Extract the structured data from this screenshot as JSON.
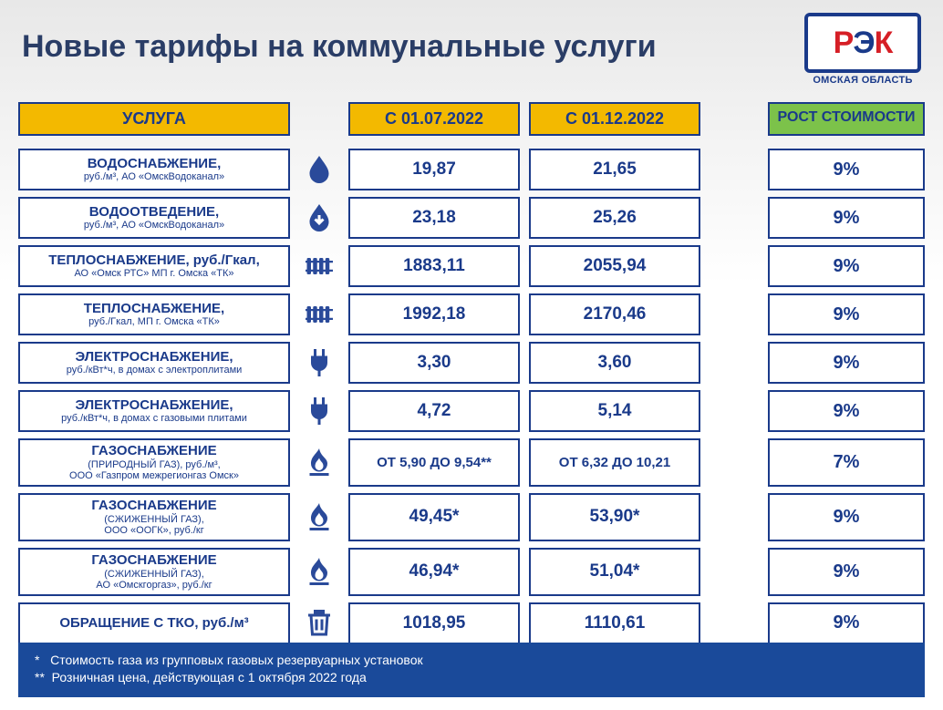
{
  "title": "Новые тарифы на коммунальные услуги",
  "logo": {
    "letters": [
      "Р",
      "Э",
      "К"
    ],
    "subtitle": "ОМСКАЯ ОБЛАСТЬ"
  },
  "headers": {
    "service": "УСЛУГА",
    "period1": "С 01.07.2022",
    "period2": "С 01.12.2022",
    "growth": "РОСТ СТОИМОСТИ"
  },
  "colors": {
    "border": "#1a3a8a",
    "text": "#1a3a8a",
    "header_yellow": "#f3b900",
    "header_green": "#7cc24a",
    "footer_bg": "#1a4a9a",
    "icon": "#2a4a9a"
  },
  "rows": [
    {
      "icon": "drop",
      "title": "ВОДОСНАБЖЕНИЕ,",
      "sub": "руб./м³, АО «ОмскВодоканал»",
      "p1": "19,87",
      "p2": "21,65",
      "growth": "9%",
      "small": false
    },
    {
      "icon": "drop-down",
      "title": "ВОДООТВЕДЕНИЕ,",
      "sub": "руб./м³, АО «ОмскВодоканал»",
      "p1": "23,18",
      "p2": "25,26",
      "growth": "9%",
      "small": false
    },
    {
      "icon": "radiator",
      "title": "ТЕПЛОСНАБЖЕНИЕ, руб./Гкал,",
      "sub": "АО «Омск РТС» МП г. Омска «ТК»",
      "p1": "1883,11",
      "p2": "2055,94",
      "growth": "9%",
      "small": false
    },
    {
      "icon": "radiator",
      "title": "ТЕПЛОСНАБЖЕНИЕ,",
      "sub": "руб./Гкал, МП г. Омска «ТК»",
      "p1": "1992,18",
      "p2": "2170,46",
      "growth": "9%",
      "small": false
    },
    {
      "icon": "plug",
      "title": "ЭЛЕКТРОСНАБЖЕНИЕ,",
      "sub": "руб./кВт*ч, в домах с электроплитами",
      "p1": "3,30",
      "p2": "3,60",
      "growth": "9%",
      "small": false
    },
    {
      "icon": "plug",
      "title": "ЭЛЕКТРОСНАБЖЕНИЕ,",
      "sub": "руб./кВт*ч, в домах с газовыми плитами",
      "p1": "4,72",
      "p2": "5,14",
      "growth": "9%",
      "small": false
    },
    {
      "icon": "flame",
      "title": "ГАЗОСНАБЖЕНИЕ",
      "sub": "(ПРИРОДНЫЙ ГАЗ), руб./м³,\nООО «Газпром межрегионгаз Омск»",
      "p1": "ОТ 5,90 ДО 9,54**",
      "p2": "ОТ 6,32 ДО 10,21",
      "growth": "7%",
      "small": true
    },
    {
      "icon": "flame",
      "title": "ГАЗОСНАБЖЕНИЕ",
      "sub": "(СЖИЖЕННЫЙ ГАЗ),\nООО «ООГК», руб./кг",
      "p1": "49,45*",
      "p2": "53,90*",
      "growth": "9%",
      "small": false
    },
    {
      "icon": "flame",
      "title": "ГАЗОСНАБЖЕНИЕ",
      "sub": "(СЖИЖЕННЫЙ ГАЗ),\nАО «Омскгоргаз», руб./кг",
      "p1": "46,94*",
      "p2": "51,04*",
      "growth": "9%",
      "small": false
    },
    {
      "icon": "trash",
      "title": "ОБРАЩЕНИЕ С ТКО, руб./м³",
      "sub": "",
      "p1": "1018,95",
      "p2": "1110,61",
      "growth": "9%",
      "small": false
    }
  ],
  "footnotes": [
    "*   Стоимость газа из групповых газовых резервуарных установок",
    "**  Розничная цена, действующая с 1 октября 2022 года"
  ]
}
